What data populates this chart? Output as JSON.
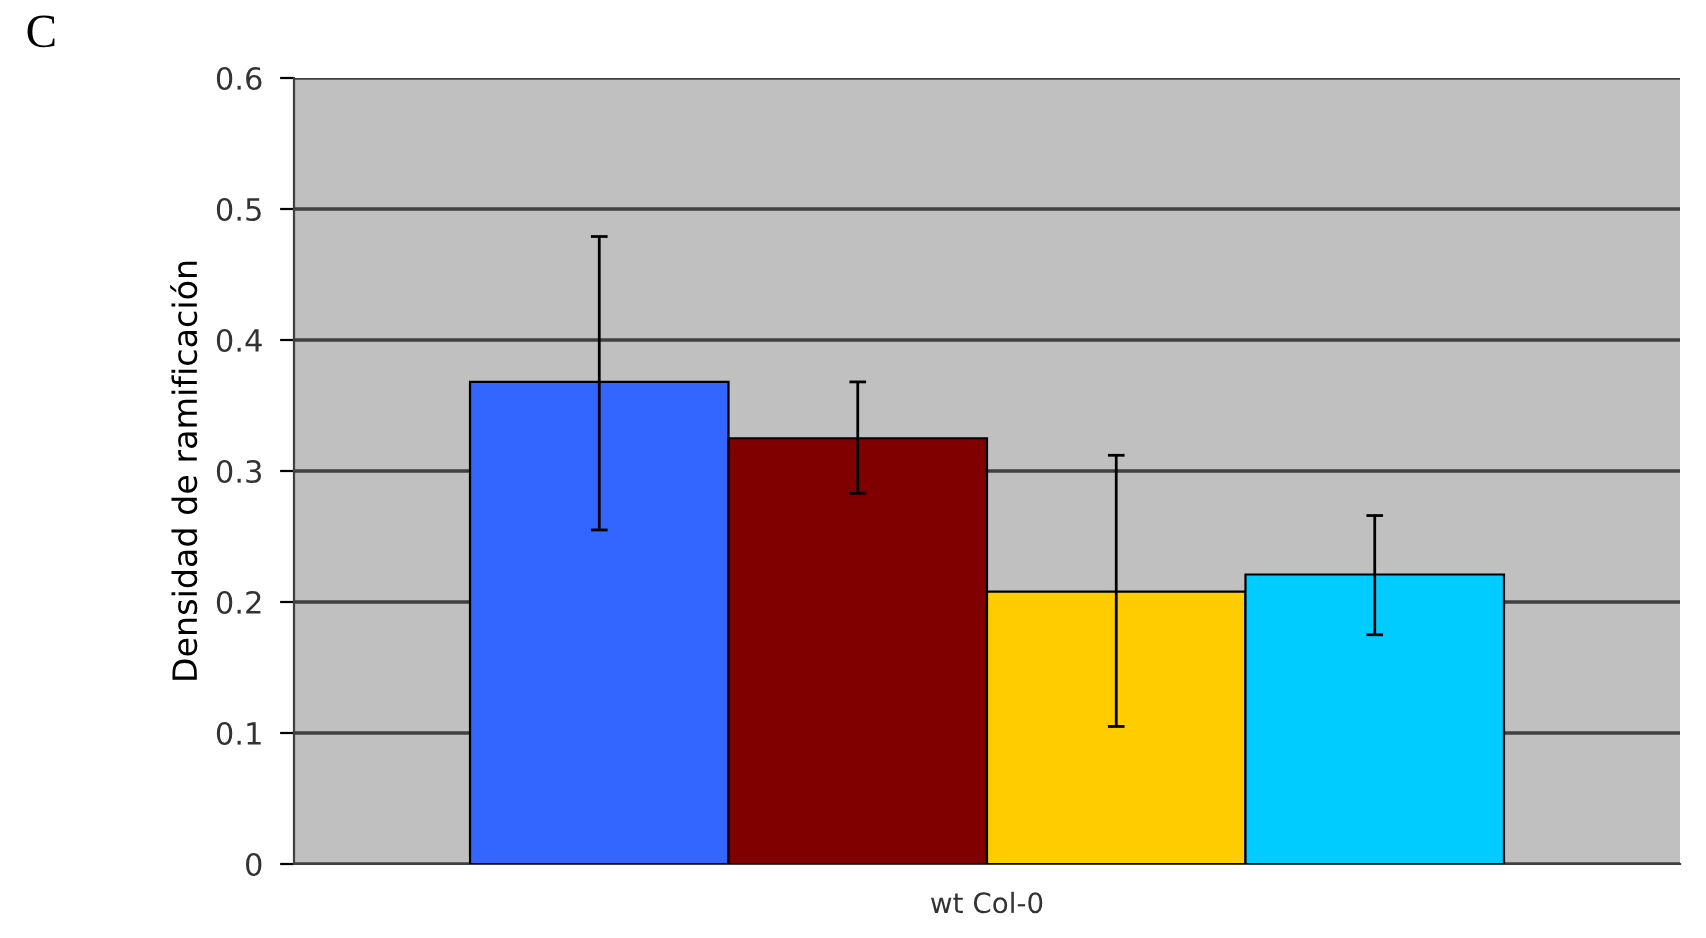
{
  "chart_data": {
    "type": "bar",
    "ylabel": "Densidad de ramificación",
    "categories": [
      "wt Col-0"
    ],
    "series": [
      {
        "color": "#3366ff",
        "values": [
          0.368
        ],
        "errors": [
          [
            0.255,
            0.479
          ]
        ]
      },
      {
        "color": "#800000",
        "values": [
          0.325
        ],
        "errors": [
          [
            0.283,
            0.368
          ]
        ]
      },
      {
        "color": "#ffcc00",
        "values": [
          0.208
        ],
        "errors": [
          [
            0.105,
            0.312
          ]
        ]
      },
      {
        "color": "#00ccff",
        "values": [
          0.221
        ],
        "errors": [
          [
            0.175,
            0.266
          ]
        ]
      }
    ],
    "ylim": [
      0,
      0.6
    ],
    "yticks": [
      {
        "value": 0,
        "label": "0"
      },
      0.1,
      0.2,
      0.3,
      0.4,
      0.5,
      0.6
    ],
    "grid": "y",
    "annotations": [
      "C"
    ]
  }
}
